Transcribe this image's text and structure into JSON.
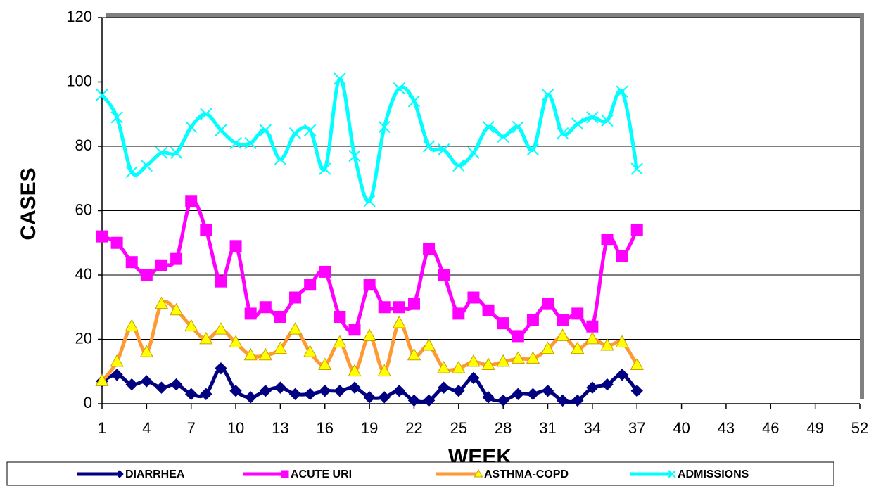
{
  "chart_data": {
    "type": "line",
    "x_label": "WEEK",
    "y_label": "CASES",
    "x": [
      1,
      2,
      3,
      4,
      5,
      6,
      7,
      8,
      9,
      10,
      11,
      12,
      13,
      14,
      15,
      16,
      17,
      18,
      19,
      20,
      21,
      22,
      23,
      24,
      25,
      26,
      27,
      28,
      29,
      30,
      31,
      32,
      33,
      34,
      35,
      36,
      37
    ],
    "series": [
      {
        "name": "DIARRHEA",
        "color": "#000080",
        "marker": "diamond",
        "marker_fill": "#000080",
        "values": [
          7,
          9,
          6,
          7,
          5,
          6,
          3,
          3,
          11,
          4,
          2,
          4,
          5,
          3,
          3,
          4,
          4,
          5,
          2,
          2,
          4,
          1,
          1,
          5,
          4,
          8,
          2,
          1,
          3,
          3,
          4,
          1,
          1,
          5,
          6,
          9,
          4
        ]
      },
      {
        "name": "ACUTE URI",
        "color": "#ff00ff",
        "marker": "square",
        "marker_fill": "#ff00ff",
        "values": [
          52,
          50,
          44,
          40,
          43,
          45,
          63,
          54,
          38,
          49,
          28,
          30,
          27,
          33,
          37,
          41,
          27,
          23,
          37,
          30,
          30,
          31,
          48,
          40,
          28,
          33,
          29,
          25,
          21,
          26,
          31,
          26,
          28,
          24,
          51,
          46,
          54
        ]
      },
      {
        "name": "ASTHMA-COPD",
        "color": "#ff9933",
        "marker": "triangle",
        "marker_fill": "#ffff00",
        "values": [
          7,
          13,
          24,
          16,
          31,
          29,
          24,
          20,
          23,
          19,
          15,
          15,
          17,
          23,
          16,
          12,
          19,
          10,
          21,
          10,
          25,
          15,
          18,
          11,
          11,
          13,
          12,
          13,
          14,
          14,
          17,
          21,
          17,
          20,
          18,
          19,
          12
        ]
      },
      {
        "name": "ADMISSIONS",
        "color": "#00ffff",
        "marker": "x",
        "marker_fill": "#00ffff",
        "values": [
          96,
          89,
          72,
          74,
          78,
          78,
          86,
          90,
          85,
          81,
          81,
          85,
          76,
          84,
          85,
          73,
          101,
          77,
          63,
          86,
          98,
          94,
          80,
          79,
          74,
          78,
          86,
          83,
          86,
          79,
          96,
          84,
          87,
          89,
          88,
          97,
          73
        ]
      }
    ],
    "xlim": [
      1,
      52
    ],
    "xticks": [
      1,
      4,
      7,
      10,
      13,
      16,
      19,
      22,
      25,
      28,
      31,
      34,
      37,
      40,
      43,
      46,
      49,
      52
    ],
    "ylim": [
      0,
      120
    ],
    "yticks": [
      0,
      20,
      40,
      60,
      80,
      100,
      120
    ],
    "grid": true,
    "legend": "bottom"
  }
}
